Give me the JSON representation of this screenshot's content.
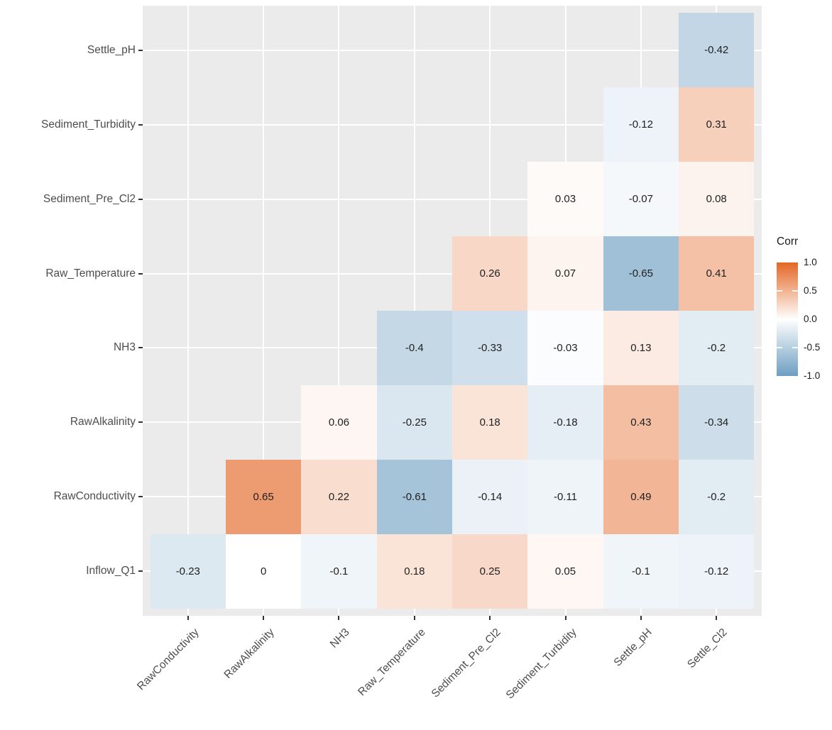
{
  "chart_data": {
    "type": "heatmap",
    "title": "",
    "x_labels": [
      "RawConductivity",
      "RawAlkalinity",
      "NH3",
      "Raw_Temperature",
      "Sediment_Pre_Cl2",
      "Sediment_Turbidity",
      "Settle_pH",
      "Settle_Cl2"
    ],
    "y_labels_top_to_bottom": [
      "Settle_pH",
      "Sediment_Turbidity",
      "Sediment_Pre_Cl2",
      "Raw_Temperature",
      "NH3",
      "RawAlkalinity",
      "RawConductivity",
      "Inflow_Q1"
    ],
    "matrix_rows_top_to_bottom": [
      [
        null,
        null,
        null,
        null,
        null,
        null,
        null,
        -0.42
      ],
      [
        null,
        null,
        null,
        null,
        null,
        null,
        -0.12,
        0.31
      ],
      [
        null,
        null,
        null,
        null,
        null,
        0.03,
        -0.07,
        0.08
      ],
      [
        null,
        null,
        null,
        null,
        0.26,
        0.07,
        -0.65,
        0.41
      ],
      [
        null,
        null,
        null,
        -0.4,
        -0.33,
        -0.03,
        0.13,
        -0.2
      ],
      [
        null,
        null,
        0.06,
        -0.25,
        0.18,
        -0.18,
        0.43,
        -0.34
      ],
      [
        null,
        0.65,
        0.22,
        -0.61,
        -0.14,
        -0.11,
        0.49,
        -0.2
      ],
      [
        -0.23,
        0,
        -0.1,
        0.18,
        0.25,
        0.05,
        -0.1,
        -0.12
      ]
    ],
    "legend": {
      "title": "Corr",
      "position": "right",
      "tick_labels": [
        "1.0",
        "0.5",
        "0.0",
        "-0.5",
        "-1.0"
      ],
      "tick_values": [
        1.0,
        0.5,
        0.0,
        -0.5,
        -1.0
      ],
      "range": [
        -1.0,
        1.0
      ]
    },
    "colors": {
      "high": "#E46726",
      "mid": "#FFFFFF",
      "low": "#6D9EC1",
      "panel_bg": "#EBEBEB",
      "grid": "#FFFFFF",
      "axis_text": "#4D4D4D",
      "tick_mark": "#333333",
      "cell_text": "#1f1f1f"
    },
    "layout_hints": {
      "grid": "on",
      "shape": "lower-triangle",
      "x_label_rotation_deg": -45
    }
  }
}
